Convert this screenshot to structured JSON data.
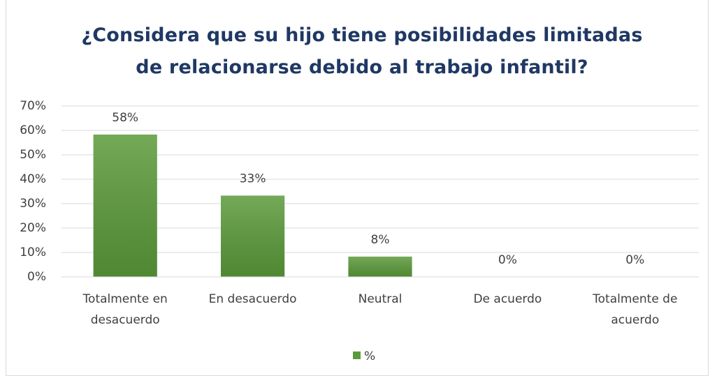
{
  "chart_data": {
    "type": "bar",
    "title": "¿Considera que su hijo tiene posibilidades limitadas de relacionarse debido al trabajo infantil?",
    "categories": [
      "Totalmente en desacuerdo",
      "En desacuerdo",
      "Neutral",
      "De acuerdo",
      "Totalmente de acuerdo"
    ],
    "series": [
      {
        "name": "%",
        "color": "#5b9a3a",
        "values": [
          58.3,
          33.3,
          8.3,
          0,
          0
        ],
        "value_labels": [
          "58%",
          "33%",
          "8%",
          "0%",
          "0%"
        ]
      }
    ],
    "ylim": [
      0,
      70
    ],
    "yticks": [
      {
        "value": 0,
        "label": "0%"
      },
      {
        "value": 10,
        "label": "10%"
      },
      {
        "value": 20,
        "label": "20%"
      },
      {
        "value": 30,
        "label": "30%"
      },
      {
        "value": 40,
        "label": "40%"
      },
      {
        "value": 50,
        "label": "50%"
      },
      {
        "value": 60,
        "label": "60%"
      },
      {
        "value": 70,
        "label": "70%"
      }
    ],
    "grid": true,
    "legend": "bottom"
  }
}
